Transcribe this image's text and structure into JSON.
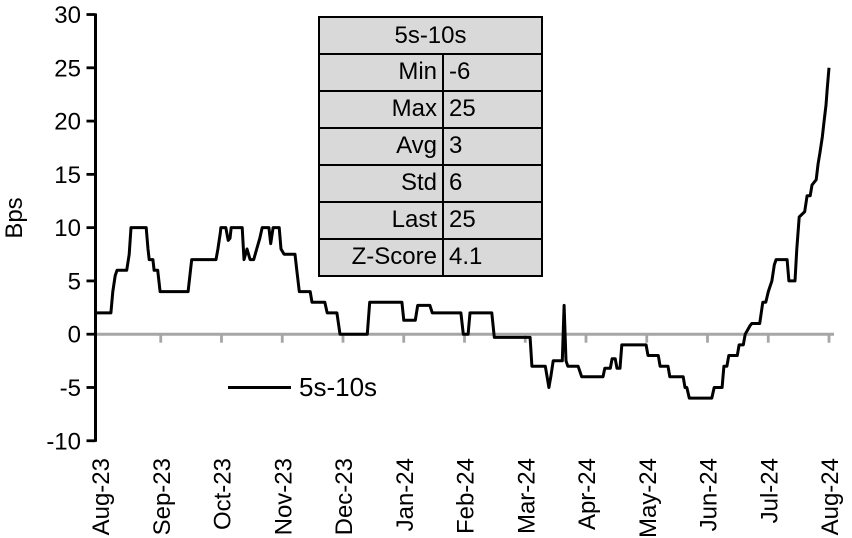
{
  "legend": {
    "label": "5s-10s",
    "line_color": "#000000"
  },
  "stats_table": {
    "header": "5s-10s",
    "background": "#d9d9d9",
    "border_color": "#000000",
    "rows": [
      {
        "label": "Min",
        "value": "-6"
      },
      {
        "label": "Max",
        "value": "25"
      },
      {
        "label": "Avg",
        "value": "3"
      },
      {
        "label": "Std",
        "value": "6"
      },
      {
        "label": "Last",
        "value": "25"
      },
      {
        "label": "Z-Score",
        "value": "4.1"
      }
    ]
  },
  "chart_data": {
    "type": "line",
    "title": "",
    "ylabel": "Bps",
    "ylim": [
      -10,
      30
    ],
    "yticks": [
      30,
      25,
      20,
      15,
      10,
      5,
      0,
      -5,
      -10
    ],
    "x_tick_labels": [
      "Aug-23",
      "Sep-23",
      "Oct-23",
      "Nov-23",
      "Dec-23",
      "Jan-24",
      "Feb-24",
      "Mar-24",
      "Apr-24",
      "May-24",
      "Jun-24",
      "Jul-24",
      "Aug-24"
    ],
    "x_unit": "months since Aug-23 (0 = Aug-23, 12 = Aug-24)",
    "grid": false,
    "legend_position": "bottom-left-inside",
    "zero_line_color": "#a6a6a6",
    "axis_color": "#000000",
    "series": [
      {
        "name": "5s-10s",
        "color": "#000000",
        "points": [
          [
            -0.07,
            2
          ],
          [
            0.18,
            2
          ],
          [
            0.21,
            4
          ],
          [
            0.25,
            5.5
          ],
          [
            0.28,
            6
          ],
          [
            0.44,
            6
          ],
          [
            0.48,
            7.5
          ],
          [
            0.51,
            10
          ],
          [
            0.76,
            10
          ],
          [
            0.79,
            8
          ],
          [
            0.81,
            7
          ],
          [
            0.87,
            7
          ],
          [
            0.89,
            6
          ],
          [
            0.95,
            6
          ],
          [
            0.99,
            4
          ],
          [
            1.45,
            4
          ],
          [
            1.48,
            5.5
          ],
          [
            1.51,
            7
          ],
          [
            1.91,
            7
          ],
          [
            1.94,
            8
          ],
          [
            1.98,
            9.5
          ],
          [
            1.99,
            10
          ],
          [
            2.07,
            10
          ],
          [
            2.11,
            8.8
          ],
          [
            2.14,
            9
          ],
          [
            2.16,
            10
          ],
          [
            2.34,
            10
          ],
          [
            2.37,
            7
          ],
          [
            2.42,
            8
          ],
          [
            2.47,
            7
          ],
          [
            2.53,
            7
          ],
          [
            2.58,
            8
          ],
          [
            2.63,
            9
          ],
          [
            2.67,
            10
          ],
          [
            2.78,
            10
          ],
          [
            2.81,
            8.5
          ],
          [
            2.85,
            10
          ],
          [
            2.95,
            10
          ],
          [
            2.98,
            8
          ],
          [
            3.03,
            7.5
          ],
          [
            3.21,
            7.5
          ],
          [
            3.24,
            6
          ],
          [
            3.28,
            4
          ],
          [
            3.46,
            4
          ],
          [
            3.49,
            3
          ],
          [
            3.7,
            3
          ],
          [
            3.74,
            2
          ],
          [
            3.9,
            2
          ],
          [
            3.95,
            0
          ],
          [
            4.4,
            0
          ],
          [
            4.44,
            3
          ],
          [
            4.97,
            3
          ],
          [
            5.0,
            1.3
          ],
          [
            5.19,
            1.3
          ],
          [
            5.23,
            2.7
          ],
          [
            5.43,
            2.7
          ],
          [
            5.47,
            2
          ],
          [
            5.94,
            2
          ],
          [
            5.98,
            0
          ],
          [
            6.06,
            0
          ],
          [
            6.09,
            2
          ],
          [
            6.45,
            2
          ],
          [
            6.49,
            -0.3
          ],
          [
            7.08,
            -0.3
          ],
          [
            7.11,
            -3
          ],
          [
            7.33,
            -3
          ],
          [
            7.36,
            -4
          ],
          [
            7.39,
            -5
          ],
          [
            7.42,
            -4
          ],
          [
            7.46,
            -2.5
          ],
          [
            7.61,
            -2.5
          ],
          [
            7.64,
            2.7
          ],
          [
            7.67,
            -2.5
          ],
          [
            7.7,
            -3
          ],
          [
            7.87,
            -3
          ],
          [
            7.9,
            -3.5
          ],
          [
            7.93,
            -4
          ],
          [
            8.28,
            -4
          ],
          [
            8.31,
            -3.2
          ],
          [
            8.4,
            -3.2
          ],
          [
            8.43,
            -2.3
          ],
          [
            8.48,
            -2.3
          ],
          [
            8.51,
            -3.2
          ],
          [
            8.56,
            -3.2
          ],
          [
            8.59,
            -1
          ],
          [
            8.99,
            -1
          ],
          [
            9.02,
            -2
          ],
          [
            9.19,
            -2
          ],
          [
            9.22,
            -3
          ],
          [
            9.35,
            -3
          ],
          [
            9.38,
            -4
          ],
          [
            9.6,
            -4
          ],
          [
            9.63,
            -5
          ],
          [
            9.66,
            -5
          ],
          [
            9.7,
            -6
          ],
          [
            10.07,
            -6
          ],
          [
            10.11,
            -5
          ],
          [
            10.24,
            -5
          ],
          [
            10.27,
            -3
          ],
          [
            10.32,
            -3
          ],
          [
            10.35,
            -2
          ],
          [
            10.49,
            -2
          ],
          [
            10.52,
            -1
          ],
          [
            10.59,
            -1
          ],
          [
            10.62,
            0
          ],
          [
            10.7,
            0.8
          ],
          [
            10.73,
            1
          ],
          [
            10.86,
            1
          ],
          [
            10.91,
            3
          ],
          [
            10.96,
            3
          ],
          [
            11.0,
            4
          ],
          [
            11.06,
            5
          ],
          [
            11.1,
            6.5
          ],
          [
            11.13,
            7
          ],
          [
            11.31,
            7
          ],
          [
            11.34,
            5
          ],
          [
            11.44,
            5
          ],
          [
            11.47,
            8
          ],
          [
            11.51,
            11
          ],
          [
            11.6,
            11.5
          ],
          [
            11.64,
            13
          ],
          [
            11.69,
            13
          ],
          [
            11.72,
            14
          ],
          [
            11.79,
            14.5
          ],
          [
            11.82,
            16
          ],
          [
            11.85,
            17
          ],
          [
            11.89,
            18.5
          ],
          [
            11.92,
            20
          ],
          [
            11.95,
            21.5
          ],
          [
            11.97,
            23
          ],
          [
            12.0,
            25
          ]
        ]
      }
    ]
  }
}
